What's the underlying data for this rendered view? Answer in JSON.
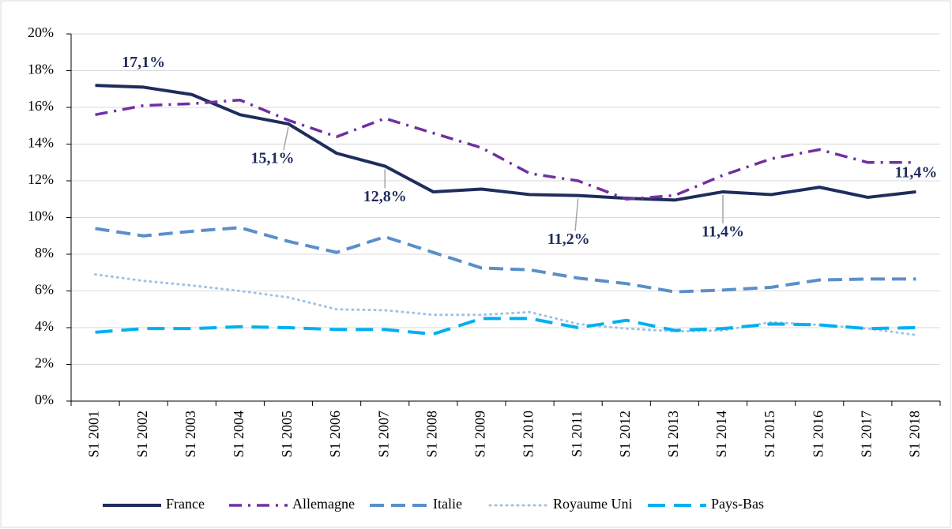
{
  "chart_data": {
    "type": "line",
    "categories": [
      "S1 2001",
      "S1 2002",
      "S1 2003",
      "S1 2004",
      "S1 2005",
      "S1 2006",
      "S1 2007",
      "S1 2008",
      "S1 2009",
      "S1 2010",
      "S1 2011",
      "S1 2012",
      "S1 2013",
      "S1 2014",
      "S1 2015",
      "S1 2016",
      "S1 2017",
      "S1 2018"
    ],
    "series": [
      {
        "name": "France",
        "color": "#1f2d5c",
        "style": "solid",
        "values": [
          17.2,
          17.1,
          16.7,
          15.6,
          15.1,
          13.5,
          12.8,
          11.4,
          11.55,
          11.25,
          11.2,
          11.05,
          10.95,
          11.4,
          11.25,
          11.65,
          11.1,
          11.4
        ],
        "value_labels": [
          null,
          "17,1%",
          null,
          null,
          "15,1%",
          null,
          "12,8%",
          null,
          null,
          null,
          "11,2%",
          null,
          null,
          "11,4%",
          null,
          null,
          null,
          "11,4%"
        ]
      },
      {
        "name": "Allemagne",
        "color": "#7030a0",
        "style": "dashdot",
        "values": [
          15.6,
          16.1,
          16.2,
          16.4,
          15.3,
          14.4,
          15.4,
          14.6,
          13.8,
          12.4,
          12.0,
          11.0,
          11.2,
          12.3,
          13.2,
          13.7,
          13.0,
          13.0
        ]
      },
      {
        "name": "Italie",
        "color": "#5b8fc9",
        "style": "dashed",
        "values": [
          9.4,
          9.0,
          9.25,
          9.45,
          8.7,
          8.1,
          8.95,
          8.1,
          7.25,
          7.15,
          6.7,
          6.4,
          5.95,
          6.05,
          6.2,
          6.6,
          6.65,
          6.65
        ]
      },
      {
        "name": "Royaume Uni",
        "color": "#9dc3e6",
        "style": "dotted",
        "values": [
          6.9,
          6.55,
          6.3,
          6.0,
          5.65,
          5.0,
          4.95,
          4.7,
          4.7,
          4.85,
          4.2,
          3.95,
          3.8,
          3.85,
          4.3,
          4.15,
          3.95,
          3.6
        ]
      },
      {
        "name": "Pays-Bas",
        "color": "#00b0f0",
        "style": "longdash",
        "values": [
          3.75,
          3.95,
          3.95,
          4.05,
          4.0,
          3.9,
          3.9,
          3.65,
          4.5,
          4.5,
          4.0,
          4.4,
          3.85,
          3.95,
          4.2,
          4.15,
          3.95,
          4.0
        ]
      }
    ],
    "ylim": [
      0,
      20
    ],
    "yticks": [
      {
        "value": 0,
        "label": "0%"
      },
      {
        "value": 2,
        "label": "2%"
      },
      {
        "value": 4,
        "label": "4%"
      },
      {
        "value": 6,
        "label": "6%"
      },
      {
        "value": 8,
        "label": "8%"
      },
      {
        "value": 10,
        "label": "10%"
      },
      {
        "value": 12,
        "label": "12%"
      },
      {
        "value": 14,
        "label": "14%"
      },
      {
        "value": 16,
        "label": "16%"
      },
      {
        "value": 18,
        "label": "18%"
      },
      {
        "value": 20,
        "label": "20%"
      }
    ],
    "grid": true,
    "legend": "bottom"
  }
}
